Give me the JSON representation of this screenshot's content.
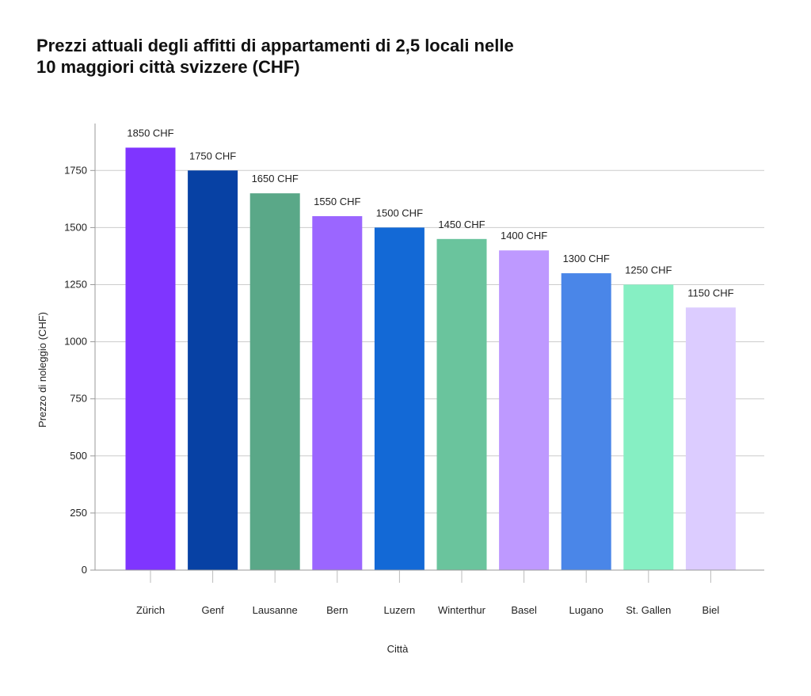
{
  "chart_data": {
    "type": "bar",
    "title_lines": [
      "Prezzi attuali degli affitti di appartamenti di 2,5 locali nelle",
      "10 maggiori città svizzere (CHF)"
    ],
    "xlabel": "Città",
    "ylabel": "Prezzo di noleggio (CHF)",
    "ylim": [
      0,
      1950
    ],
    "yticks": [
      0,
      250,
      500,
      750,
      1000,
      1250,
      1500,
      1750
    ],
    "grid": true,
    "categories": [
      "Zürich",
      "Genf",
      "Lausanne",
      "Bern",
      "Luzern",
      "Winterthur",
      "Basel",
      "Lugano",
      "St. Gallen",
      "Biel"
    ],
    "values": [
      1850,
      1750,
      1650,
      1550,
      1500,
      1450,
      1400,
      1300,
      1250,
      1150
    ],
    "data_labels": [
      "1850 CHF",
      "1750 CHF",
      "1650 CHF",
      "1550 CHF",
      "1500 CHF",
      "1450 CHF",
      "1400 CHF",
      "1300 CHF",
      "1250 CHF",
      "1150 CHF"
    ],
    "colors": [
      "#7F35FF",
      "#0741A4",
      "#5AA888",
      "#9B66FF",
      "#1369D6",
      "#6AC49D",
      "#BE99FF",
      "#4A86E8",
      "#86EFC3",
      "#DCCCFF"
    ]
  }
}
